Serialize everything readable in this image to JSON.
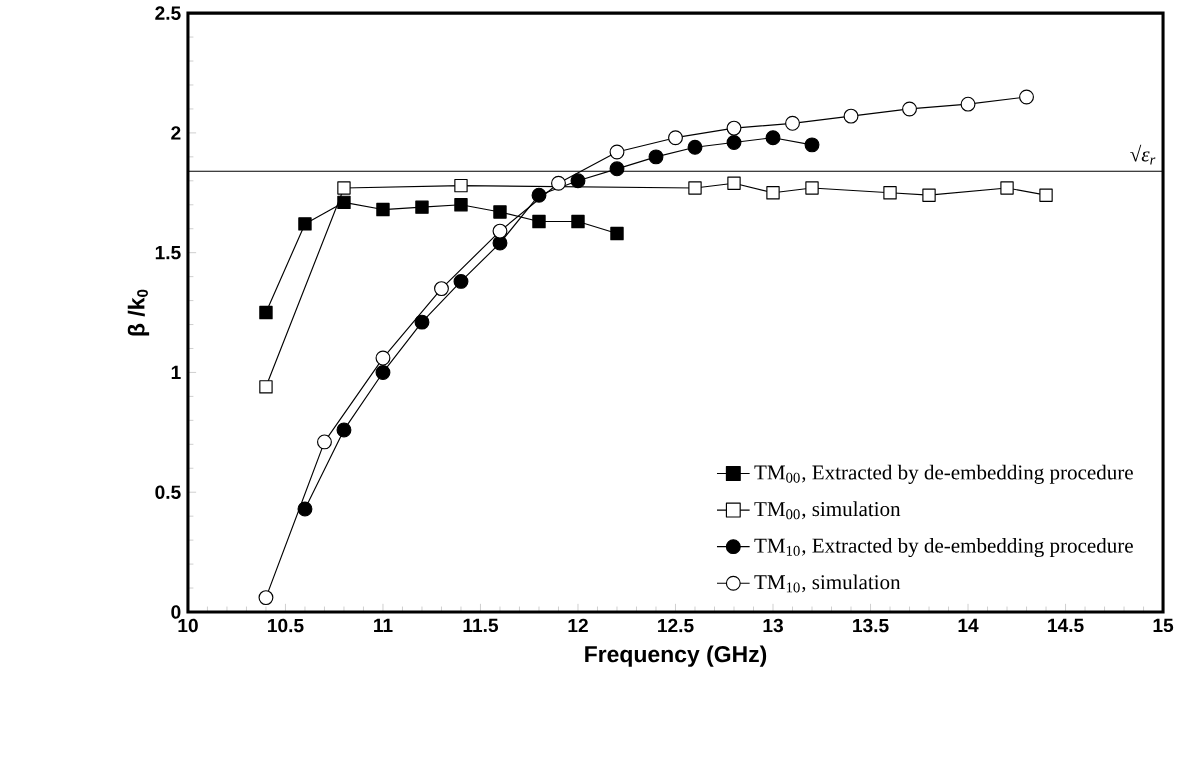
{
  "chart_data": {
    "type": "line",
    "xlabel": "Frequency (GHz)",
    "ylabel": "β /k$_{0}$",
    "xlim": [
      10,
      15
    ],
    "xticks": [
      10,
      10.5,
      11,
      11.5,
      12,
      12.5,
      13,
      13.5,
      14,
      14.5,
      15
    ],
    "ylim": [
      0,
      2.5
    ],
    "yticks": [
      0,
      0.5,
      1,
      1.5,
      2,
      2.5
    ],
    "grid": false,
    "legend": "bottom right",
    "line_style": "solid",
    "ref_lines": [
      {
        "axis": "y",
        "value": 1.84,
        "label": "√ε$_{r}$",
        "color": "#000000"
      }
    ],
    "series": [
      {
        "name": "TM$_{00}$, Extracted by de-embedding procedure",
        "color": "#000000",
        "marker": "square",
        "x": [
          10.4,
          10.6,
          10.8,
          11.0,
          11.2,
          11.4,
          11.6,
          11.8,
          12.0,
          12.2
        ],
        "values": [
          1.25,
          1.62,
          1.71,
          1.68,
          1.69,
          1.7,
          1.67,
          1.63,
          1.63,
          1.58
        ]
      },
      {
        "name": "TM$_{00}$, simulation",
        "color": "#000000",
        "marker": "square",
        "x": [
          10.4,
          10.8,
          11.4,
          12.6,
          12.8,
          13.0,
          13.2,
          13.6,
          13.8,
          14.2,
          14.4
        ],
        "values": [
          0.94,
          1.77,
          1.78,
          1.77,
          1.79,
          1.75,
          1.77,
          1.75,
          1.74,
          1.77,
          1.74
        ]
      },
      {
        "name": "TM$_{10}$, Extracted by de-embedding procedure",
        "color": "#000000",
        "marker": "circle",
        "x": [
          10.6,
          10.8,
          11.0,
          11.2,
          11.4,
          11.6,
          11.8,
          12.0,
          12.2,
          12.4,
          12.6,
          12.8,
          13.0,
          13.2
        ],
        "values": [
          0.43,
          0.76,
          1.0,
          1.21,
          1.38,
          1.54,
          1.74,
          1.8,
          1.85,
          1.9,
          1.94,
          1.96,
          1.98,
          1.95
        ]
      },
      {
        "name": "TM$_{10}$, simulation",
        "color": "#000000",
        "marker": "circle",
        "x": [
          10.4,
          10.7,
          11.0,
          11.3,
          11.6,
          11.9,
          12.2,
          12.5,
          12.8,
          13.1,
          13.4,
          13.7,
          14.0,
          14.3
        ],
        "values": [
          0.06,
          0.71,
          1.06,
          1.35,
          1.59,
          1.79,
          1.92,
          1.98,
          2.02,
          2.04,
          2.07,
          2.1,
          2.12,
          2.15
        ]
      }
    ]
  }
}
